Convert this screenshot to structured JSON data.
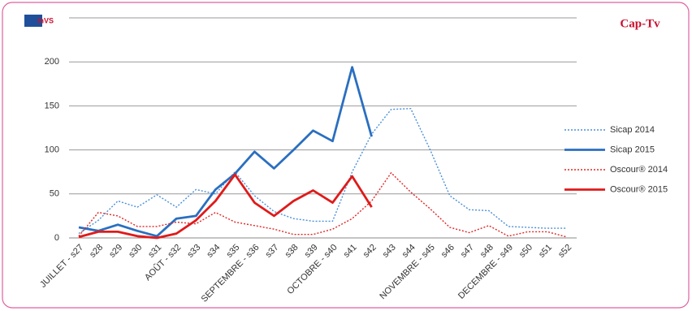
{
  "chart_data": {
    "type": "line",
    "annotations": [
      "InVS",
      "Cap-Tv"
    ],
    "categories": [
      "JUILLET - s27",
      "s28",
      "s29",
      "s30",
      "s31",
      "AOÛT - s32",
      "s33",
      "s34",
      "s35",
      "SEPTEMBRE - s36",
      "s37",
      "s38",
      "s39",
      "OCTOBRE - s40",
      "s41",
      "s42",
      "s43",
      "s44",
      "NOVEMBRE - s45",
      "s46",
      "s47",
      "s48",
      "DECEMBRE - s49",
      "s50",
      "s51",
      "s52"
    ],
    "series": [
      {
        "name": "Sicap 2014",
        "color": "#4a8fd9",
        "style": "dotted",
        "values": [
          5,
          20,
          42,
          35,
          49,
          35,
          55,
          50,
          75,
          48,
          30,
          22,
          19,
          19,
          75,
          118,
          146,
          147,
          100,
          48,
          32,
          31,
          13,
          12,
          11,
          11
        ]
      },
      {
        "name": "Sicap 2015",
        "color": "#2a6fc0",
        "style": "solid",
        "values": [
          12,
          8,
          15,
          8,
          2,
          22,
          25,
          55,
          73,
          98,
          79,
          100,
          122,
          110,
          194,
          115,
          null,
          null,
          null,
          null,
          null,
          null,
          null,
          null,
          null,
          null
        ]
      },
      {
        "name": "Oscour® 2014",
        "color": "#e02626",
        "style": "dotted",
        "values": [
          2,
          29,
          25,
          13,
          13,
          18,
          16,
          29,
          18,
          14,
          10,
          4,
          4,
          10,
          22,
          42,
          74,
          52,
          33,
          12,
          6,
          14,
          2,
          7,
          7,
          1
        ]
      },
      {
        "name": "Oscour® 2015",
        "color": "#e01a1a",
        "style": "solid",
        "values": [
          1,
          7,
          7,
          2,
          0,
          5,
          20,
          42,
          72,
          40,
          25,
          42,
          54,
          40,
          70,
          35,
          null,
          null,
          null,
          null,
          null,
          null,
          null,
          null,
          null,
          null
        ]
      }
    ],
    "ylim": [
      0,
      250
    ],
    "yticks": [
      0,
      50,
      100,
      150,
      200
    ],
    "grid": true,
    "legend": "right"
  }
}
